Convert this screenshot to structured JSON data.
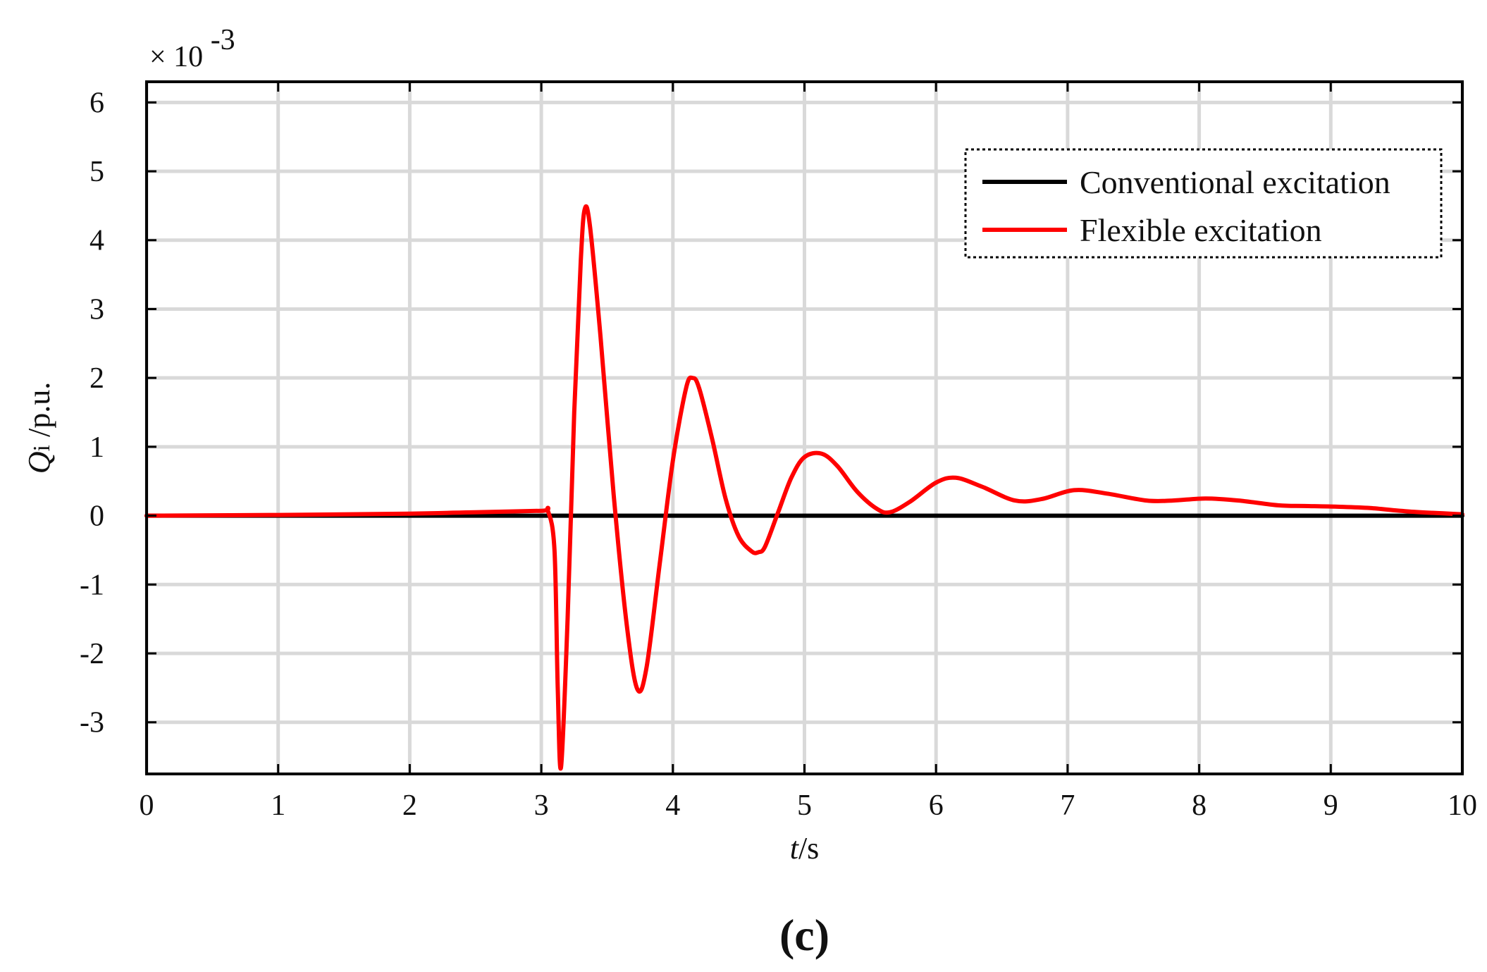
{
  "chart_data": {
    "type": "line",
    "xlabel": {
      "italic": "t",
      "rest": "/s"
    },
    "ylabel": {
      "italic": "Q",
      "sub": "i",
      "rest": " /p.u."
    },
    "exponent_label": {
      "base": "× 10",
      "power": "-3"
    },
    "panel_label": "(c)",
    "xlim": [
      0,
      10
    ],
    "ylim": [
      -3.75,
      6.3
    ],
    "xticks": [
      0,
      1,
      2,
      3,
      4,
      5,
      6,
      7,
      8,
      9,
      10
    ],
    "yticks": [
      -3,
      -2,
      -1,
      0,
      1,
      2,
      3,
      4,
      5,
      6
    ],
    "grid": true,
    "legend_position": "top-right",
    "series": [
      {
        "name": "Conventional excitation",
        "color": "#000000",
        "x": [
          0,
          10
        ],
        "y": [
          0,
          0
        ]
      },
      {
        "name": "Flexible excitation",
        "color": "#ff0000",
        "x": [
          0,
          1,
          2,
          2.5,
          3.0,
          3.05,
          3.1,
          3.125,
          3.15,
          3.2,
          3.25,
          3.3,
          3.33,
          3.37,
          3.45,
          3.55,
          3.65,
          3.73,
          3.8,
          3.9,
          4.0,
          4.1,
          4.15,
          4.2,
          4.3,
          4.4,
          4.5,
          4.6,
          4.65,
          4.7,
          4.8,
          4.9,
          5.0,
          5.13,
          5.25,
          5.4,
          5.55,
          5.65,
          5.8,
          6.0,
          6.15,
          6.35,
          6.6,
          6.8,
          7.05,
          7.3,
          7.6,
          7.8,
          8.05,
          8.3,
          8.6,
          8.8,
          9.05,
          9.3,
          9.6,
          10.0
        ],
        "y": [
          0,
          0.01,
          0.03,
          0.05,
          0.07,
          0.07,
          -0.5,
          -2.5,
          -3.65,
          -1.5,
          1.5,
          3.7,
          4.45,
          4.2,
          2.6,
          0.3,
          -1.6,
          -2.52,
          -2.2,
          -0.7,
          0.8,
          1.85,
          2.0,
          1.85,
          1.1,
          0.25,
          -0.3,
          -0.52,
          -0.53,
          -0.45,
          0.05,
          0.55,
          0.85,
          0.9,
          0.72,
          0.35,
          0.1,
          0.05,
          0.2,
          0.48,
          0.55,
          0.42,
          0.22,
          0.24,
          0.37,
          0.32,
          0.22,
          0.22,
          0.25,
          0.22,
          0.15,
          0.14,
          0.13,
          0.11,
          0.06,
          0.02
        ]
      }
    ]
  }
}
